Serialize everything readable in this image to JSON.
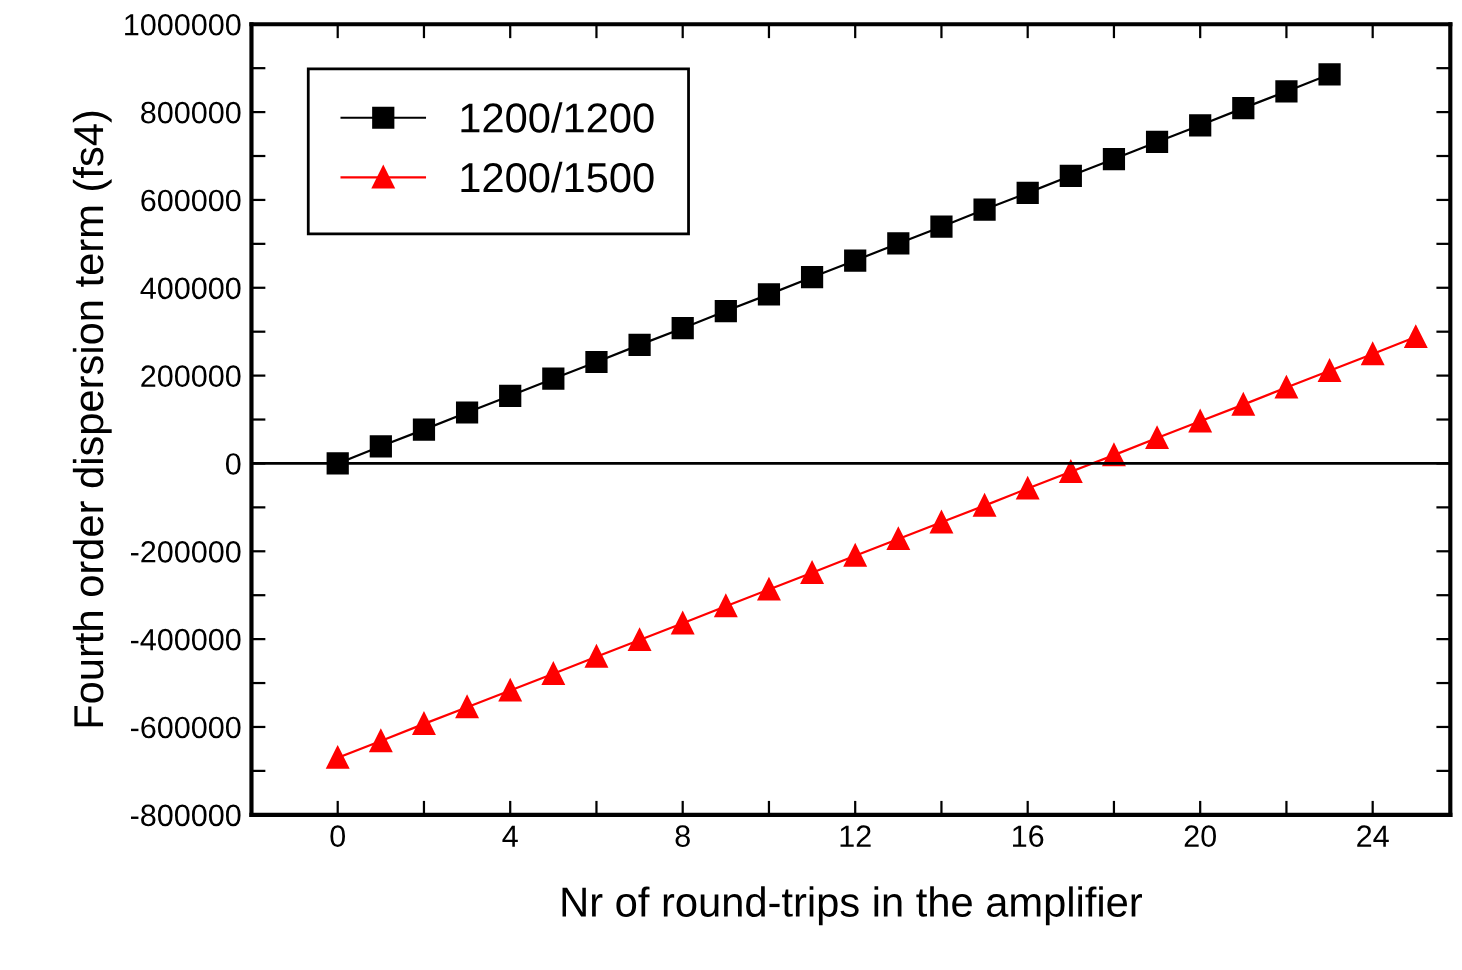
{
  "chart_data": {
    "type": "line",
    "xlabel": "Nr of round-trips in the amplifier",
    "ylabel": "Fourth order dispersion term (fs4)",
    "x": [
      0,
      1,
      2,
      3,
      4,
      5,
      6,
      7,
      8,
      9,
      10,
      11,
      12,
      13,
      14,
      15,
      16,
      17,
      18,
      19,
      20,
      21,
      22,
      23,
      24,
      25
    ],
    "series": [
      {
        "name": "1200/1200",
        "color": "#000000",
        "marker": "square",
        "values": [
          0,
          39000,
          77000,
          116000,
          154000,
          193000,
          231000,
          270000,
          308000,
          347000,
          385000,
          424000,
          462000,
          501000,
          539000,
          578000,
          616000,
          655000,
          693000,
          732000,
          770000,
          809000,
          847000,
          886000,
          null,
          null
        ]
      },
      {
        "name": "1200/1500",
        "color": "#ff0000",
        "marker": "triangle",
        "values": [
          -670000,
          -632000,
          -593000,
          -555000,
          -517000,
          -479000,
          -440000,
          -402000,
          -364000,
          -325000,
          -287000,
          -249000,
          -210000,
          -172000,
          -134000,
          -96000,
          -57000,
          -19000,
          19000,
          58000,
          96000,
          134000,
          173000,
          211000,
          249000,
          288000
        ]
      }
    ],
    "xlim": [
      -2,
      25.8
    ],
    "ylim": [
      -800000,
      1000000
    ],
    "xticks": [
      0,
      {
        "value": 2,
        "label": null
      },
      4,
      {
        "value": 6,
        "label": null
      },
      8,
      {
        "value": 10,
        "label": null
      },
      12,
      {
        "value": 14,
        "label": null
      },
      16,
      {
        "value": 18,
        "label": null
      },
      20,
      {
        "value": 22,
        "label": null
      },
      24
    ],
    "yticks": [
      -800000,
      {
        "value": -700000,
        "label": null
      },
      -600000,
      {
        "value": -500000,
        "label": null
      },
      -400000,
      {
        "value": -300000,
        "label": null
      },
      -200000,
      {
        "value": -100000,
        "label": null
      },
      0,
      {
        "value": 100000,
        "label": null
      },
      200000,
      {
        "value": 300000,
        "label": null
      },
      400000,
      {
        "value": 500000,
        "label": null
      },
      600000,
      {
        "value": 700000,
        "label": null
      },
      800000,
      {
        "value": 900000,
        "label": null
      },
      1000000
    ],
    "ref_lines": [
      {
        "axis": "y",
        "value": 0,
        "color": "#000000"
      }
    ],
    "grid": false,
    "legend": "top left",
    "line_style": "solid"
  }
}
